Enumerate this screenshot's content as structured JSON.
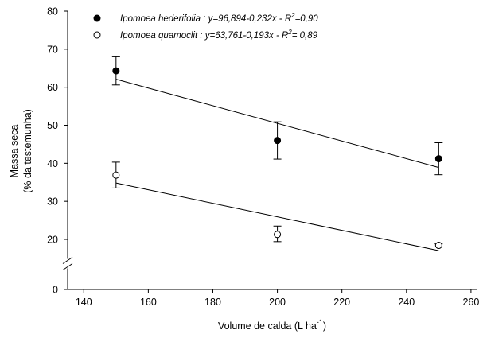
{
  "chart_data": {
    "type": "scatter",
    "xlabel": "Volume de calda (L ha",
    "xlabel_sup": "-1",
    "xlabel_end": ")",
    "ylabel": [
      "Massa seca",
      "(% da testemunha)"
    ],
    "xlim": [
      135,
      262
    ],
    "xticks": [
      140,
      160,
      180,
      200,
      220,
      240,
      260
    ],
    "ylim": [
      0,
      80
    ],
    "yticks": [
      0,
      20,
      30,
      40,
      50,
      60,
      70,
      80
    ],
    "ybreak": [
      0,
      20
    ],
    "legend": "upper left",
    "series": [
      {
        "name": "Ipomoea hederifolia : y=96,894-0,232x - R",
        "name_sup": "2",
        "name_end": "=0,90",
        "color": "#000000",
        "marker_fill": "#000000",
        "x": [
          150,
          200,
          250
        ],
        "values": [
          64.3,
          46.0,
          41.2
        ],
        "errors": [
          3.7,
          4.9,
          4.2
        ],
        "fit": {
          "intercept": 96.894,
          "slope": -0.232,
          "x": [
            150,
            250
          ]
        }
      },
      {
        "name": "Ipomoea quamoclit : y=63,761-0,193x - R",
        "name_sup": "2",
        "name_end": "= 0,89",
        "color": "#000000",
        "marker_fill": "#ffffff",
        "x": [
          150,
          200,
          250
        ],
        "values": [
          36.9,
          21.3,
          17.6
        ],
        "errors": [
          3.4,
          2.2,
          0.6
        ],
        "fit": {
          "intercept": 63.761,
          "slope": -0.193,
          "x": [
            150,
            250
          ]
        }
      }
    ]
  }
}
